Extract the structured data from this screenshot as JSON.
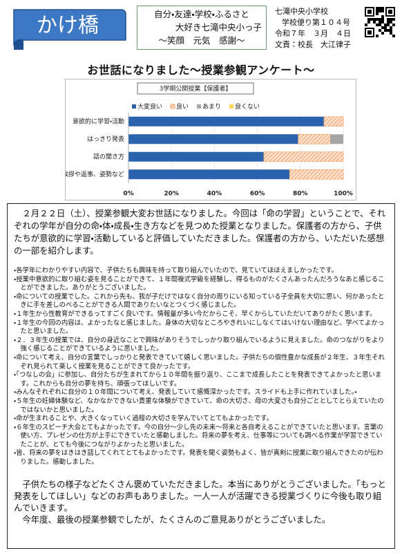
{
  "header": {
    "banner": "かけ橋",
    "motto": [
      "自分・友達・学校・ふるさと",
      "大好き七滝中央小っ子",
      "〜笑顔　元気　感謝〜"
    ],
    "school": [
      "七滝中央小学校",
      "学校便り第１０４号",
      "令和７年　３月　４日",
      "文責：校長　大江律子"
    ]
  },
  "title": "お世話になりました〜授業参観アンケート〜",
  "chart_data": {
    "type": "stacked-barh",
    "title": "3学期公開授業【保護者】",
    "categories": [
      "意欲的に学習・活動",
      "はっきり発表",
      "話の聞き方",
      "挨拶や返事、姿勢など"
    ],
    "series": [
      {
        "name": "大変良い",
        "color": "#2a62ae",
        "values": [
          91,
          79,
          63,
          75
        ]
      },
      {
        "name": "良い",
        "color": "#f4a46c",
        "values": [
          9,
          15,
          37,
          25
        ]
      },
      {
        "name": "あまり",
        "color": "#a5a5a5",
        "values": [
          0,
          6,
          0,
          0
        ]
      },
      {
        "name": "良くない",
        "color": "#ffd34d",
        "values": [
          0,
          0,
          0,
          0
        ]
      }
    ],
    "xlim": [
      0,
      100
    ],
    "xticks": [
      {
        "value": 0,
        "label": "0%"
      },
      {
        "value": 20,
        "label": "20%"
      },
      {
        "value": 40,
        "label": "40%"
      },
      {
        "value": 60,
        "label": "60%"
      },
      {
        "value": 80,
        "label": "80%"
      },
      {
        "value": 100,
        "label": "100%"
      }
    ],
    "grid": true,
    "legend": "top"
  },
  "body": {
    "intro": "２月２２日（土）、授業参観大変お世話になりました。今回は「命の学習」ということで、それぞれの学年が自分の命・体・成長・生き方などを見つめた授業となりました。保護者の方から、子供たちが意欲的に学習・活動していると評価していただきました。保護者の方から、いただいた感想の一部を紹介します。",
    "comments": [
      "・各学年にわかりやすい内容で、子供たちも興味を持って取り組んでいたので、見ていてほほえましかったです。",
      "・授業中意欲的に取り組む姿を見ることができて、１年間複式学級を経験し、得るものがたくさんあったんだろうなあと感じることができました。ありがとうございました。",
      "・命についての授業でした。これから先も、我が子だけではなく自分の周りにいる知っている子全員を大切に思い、何かあったときに手を差しのべることができる人間でありたいなとつくづく感じました。",
      "・１年生から性教育ができるってすごく良いです。情報量が多い今だからこそ、早くからしていただいてありがたく思います。",
      "・１年生の今回の内容は、よかったなと感じました。身体の大切なところやきれいにしなくてはいけない理由など、学べてよかったと思いました。",
      "・２．３年生の授業では、自分の身近なことで興味がありそうでしっかり取り組んでいるように見えました。命のつながりをより強く感じることができているように思いました。",
      "・命について考え、自分の言葉でしっかりと発表できていて嬉しく思いました。子供たちの個性豊かな成長が２年生、３年生それぞれ見られて楽しく授業を見ることができて良かったです。",
      "・「つなしの会」に参加し、自分たちが生まれてから１０年間を振り返り、ここまで成長したことを発表できてよかったと思います。これからも自分の夢を持ち、頑張ってほしいです。",
      "・みんなそれぞれに自分の１０年間について考え、発表していて感慨深かったです。スライドも上手に作れていました。・",
      "・５年生の妊婦体験など、なかなかできない貴重な体験ができていて、命の大切さ、母の大変さも自分ごととしてとらえていたのではないかと思いました。",
      "・命が生まれることや、大きくなっていく過程の大切さを学んでいてとてもよかったです。",
      "・６年生のスピーチ大会とてもよかったです。今の自分〜少し先の未来〜将来と各自考えることができていたと思います。言葉の使い方、プレゼンの仕方が上手にできていたと感動しました。将来の夢を考え、仕事等についても調べる作業が学習できていたことが、とても今後につながりよかったと思いました。",
      "・皆、将来の夢をはきはき話してくれてとてもよかったです。発表を聞く姿勢もよく、皆が真剣に授業に取り組んできたのが伝わりました。感動しました。"
    ],
    "closing": [
      "子供たちの様子などたくさん褒めていただきました。本当にありがとうございました。「もっと発表をしてほしい」などのお声もありました。一人一人が活躍できる授業づくりに今後も取り組んでいきます。",
      "今年度、最後の授業参観でしたが、たくさんのご意見ありがとうございました。"
    ]
  }
}
